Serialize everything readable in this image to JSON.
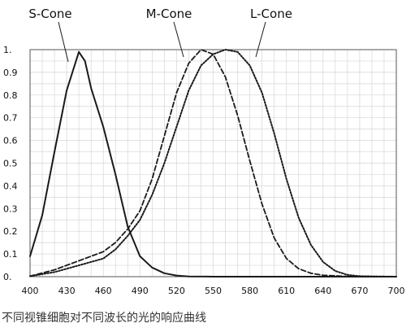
{
  "caption": "不同视锥细胞对不同波长的光的响应曲线",
  "chart_data": {
    "type": "line",
    "title": "",
    "xlabel": "",
    "ylabel": "",
    "xlim": [
      400,
      700
    ],
    "ylim": [
      0,
      1
    ],
    "grid": true,
    "x_ticks": [
      "400",
      "430",
      "460",
      "490",
      "520",
      "550",
      "580",
      "610",
      "640",
      "670",
      "700"
    ],
    "y_ticks": [
      "0.",
      "0.1",
      "0.2",
      "0.3",
      "0.4",
      "0.5",
      "0.6",
      "0.7",
      "0.8",
      "0.9",
      "1."
    ],
    "colors": {
      "line": "#1a1a1a",
      "grid": "#d6d6d6",
      "frame": "#555555"
    },
    "series": [
      {
        "name": "S-Cone",
        "style": "solid",
        "points": [
          [
            400,
            0.09
          ],
          [
            410,
            0.27
          ],
          [
            420,
            0.55
          ],
          [
            430,
            0.82
          ],
          [
            440,
            0.99
          ],
          [
            445,
            0.95
          ],
          [
            450,
            0.83
          ],
          [
            460,
            0.66
          ],
          [
            470,
            0.45
          ],
          [
            480,
            0.22
          ],
          [
            490,
            0.09
          ],
          [
            500,
            0.04
          ],
          [
            510,
            0.015
          ],
          [
            520,
            0.005
          ],
          [
            530,
            0.001
          ],
          [
            550,
            0
          ],
          [
            600,
            0
          ],
          [
            700,
            0
          ]
        ]
      },
      {
        "name": "M-Cone",
        "style": "dashed",
        "points": [
          [
            400,
            0.002
          ],
          [
            420,
            0.03
          ],
          [
            440,
            0.07
          ],
          [
            460,
            0.11
          ],
          [
            470,
            0.15
          ],
          [
            480,
            0.21
          ],
          [
            490,
            0.29
          ],
          [
            500,
            0.43
          ],
          [
            510,
            0.62
          ],
          [
            520,
            0.81
          ],
          [
            530,
            0.94
          ],
          [
            540,
            1.0
          ],
          [
            550,
            0.98
          ],
          [
            560,
            0.88
          ],
          [
            570,
            0.71
          ],
          [
            580,
            0.51
          ],
          [
            590,
            0.32
          ],
          [
            600,
            0.17
          ],
          [
            610,
            0.08
          ],
          [
            620,
            0.035
          ],
          [
            630,
            0.015
          ],
          [
            640,
            0.006
          ],
          [
            660,
            0.001
          ],
          [
            700,
            0
          ]
        ]
      },
      {
        "name": "L-Cone",
        "style": "dotted",
        "points": [
          [
            400,
            0.002
          ],
          [
            420,
            0.02
          ],
          [
            440,
            0.05
          ],
          [
            460,
            0.08
          ],
          [
            470,
            0.12
          ],
          [
            480,
            0.18
          ],
          [
            490,
            0.25
          ],
          [
            500,
            0.36
          ],
          [
            510,
            0.5
          ],
          [
            520,
            0.66
          ],
          [
            530,
            0.82
          ],
          [
            540,
            0.93
          ],
          [
            550,
            0.98
          ],
          [
            560,
            1.0
          ],
          [
            570,
            0.99
          ],
          [
            580,
            0.93
          ],
          [
            590,
            0.81
          ],
          [
            600,
            0.63
          ],
          [
            610,
            0.43
          ],
          [
            620,
            0.26
          ],
          [
            630,
            0.14
          ],
          [
            640,
            0.065
          ],
          [
            650,
            0.025
          ],
          [
            660,
            0.008
          ],
          [
            670,
            0.002
          ],
          [
            700,
            0
          ]
        ]
      }
    ]
  }
}
